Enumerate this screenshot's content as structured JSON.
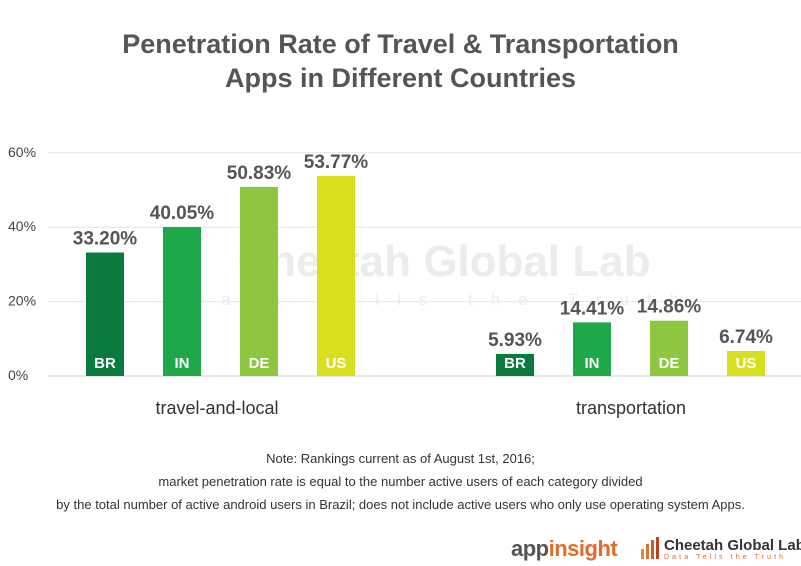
{
  "chart_data": {
    "type": "bar",
    "title_line1": "Penetration Rate of Travel & Transportation",
    "title_line2": "Apps in Different Countries",
    "ylim": [
      0,
      60
    ],
    "yticks": [
      "60%",
      "40%",
      "20%",
      "0%"
    ],
    "ytick_values": [
      60,
      40,
      20,
      0
    ],
    "groups": [
      {
        "name": "travel-and-local",
        "bars": [
          {
            "country": "BR",
            "value": 33.2,
            "label": "33.20%",
            "color": "#0b7a3e"
          },
          {
            "country": "IN",
            "value": 40.05,
            "label": "40.05%",
            "color": "#1ea84a"
          },
          {
            "country": "DE",
            "value": 50.83,
            "label": "50.83%",
            "color": "#8dc63f"
          },
          {
            "country": "US",
            "value": 53.77,
            "label": "53.77%",
            "color": "#d8df1e"
          }
        ]
      },
      {
        "name": "transportation",
        "bars": [
          {
            "country": "BR",
            "value": 5.93,
            "label": "5.93%",
            "color": "#0b7a3e"
          },
          {
            "country": "IN",
            "value": 14.41,
            "label": "14.41%",
            "color": "#1ea84a"
          },
          {
            "country": "DE",
            "value": 14.86,
            "label": "14.86%",
            "color": "#8dc63f"
          },
          {
            "country": "US",
            "value": 6.74,
            "label": "6.74%",
            "color": "#d8df1e"
          }
        ]
      }
    ],
    "watermark": "Cheetah Global Lab",
    "watermark_sub": "Data Tells the Truth"
  },
  "notes": [
    "Note: Rankings current as of August 1st, 2016;",
    "market penetration rate is equal to the number active users of each category divided",
    "by the total number of active android users in Brazil; does not include active users who only use operating system Apps."
  ],
  "branding": {
    "appinsight_a": "app",
    "appinsight_b": "insight",
    "cheetah_name": "Cheetah Global Lab",
    "cheetah_tag": "Data Tells the Truth"
  }
}
